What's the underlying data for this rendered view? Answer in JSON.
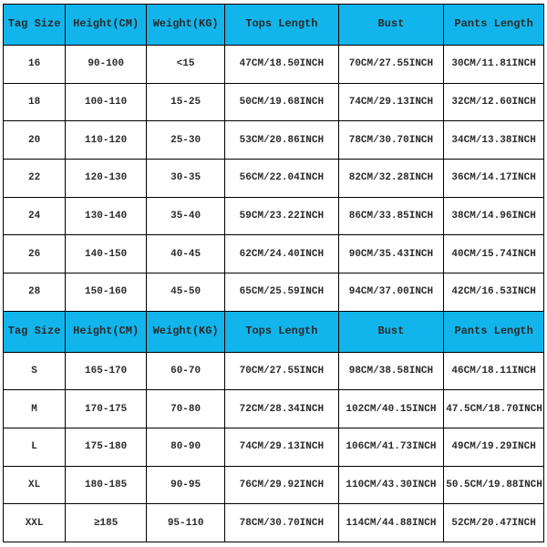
{
  "size_table": {
    "type": "table",
    "header_bg": "#12b5eb",
    "body_bg": "#ffffff",
    "border_color": "#000000",
    "text_color": "#2a2a2a",
    "font_family": "Courier New",
    "columns": [
      "Tag Size",
      "Height(CM)",
      "Weight(KG)",
      "Tops Length",
      "Bust",
      "Pants Length"
    ],
    "col_widths_pct": [
      11.5,
      15.0,
      14.5,
      21.0,
      19.5,
      18.5
    ],
    "sections": [
      {
        "header": [
          "Tag Size",
          "Height(CM)",
          "Weight(KG)",
          "Tops Length",
          "Bust",
          "Pants Length"
        ],
        "rows": [
          [
            "16",
            "90-100",
            "<15",
            "47CM/18.50INCH",
            "70CM/27.55INCH",
            "30CM/11.81INCH"
          ],
          [
            "18",
            "100-110",
            "15-25",
            "50CM/19.68INCH",
            "74CM/29.13INCH",
            "32CM/12.60INCH"
          ],
          [
            "20",
            "110-120",
            "25-30",
            "53CM/20.86INCH",
            "78CM/30.70INCH",
            "34CM/13.38INCH"
          ],
          [
            "22",
            "120-130",
            "30-35",
            "56CM/22.04INCH",
            "82CM/32.28INCH",
            "36CM/14.17INCH"
          ],
          [
            "24",
            "130-140",
            "35-40",
            "59CM/23.22INCH",
            "86CM/33.85INCH",
            "38CM/14.96INCH"
          ],
          [
            "26",
            "140-150",
            "40-45",
            "62CM/24.40INCH",
            "90CM/35.43INCH",
            "40CM/15.74INCH"
          ],
          [
            "28",
            "150-160",
            "45-50",
            "65CM/25.59INCH",
            "94CM/37.00INCH",
            "42CM/16.53INCH"
          ]
        ]
      },
      {
        "header": [
          "Tag Size",
          "Height(CM)",
          "Weight(KG)",
          "Tops Length",
          "Bust",
          "Pants Length"
        ],
        "rows": [
          [
            "S",
            "165-170",
            "60-70",
            "70CM/27.55INCH",
            "98CM/38.58INCH",
            "46CM/18.11INCH"
          ],
          [
            "M",
            "170-175",
            "70-80",
            "72CM/28.34INCH",
            "102CM/40.15INCH",
            "47.5CM/18.70INCH"
          ],
          [
            "L",
            "175-180",
            "80-90",
            "74CM/29.13INCH",
            "106CM/41.73INCH",
            "49CM/19.29INCH"
          ],
          [
            "XL",
            "180-185",
            "90-95",
            "76CM/29.92INCH",
            "110CM/43.30INCH",
            "50.5CM/19.88INCH"
          ],
          [
            "XXL",
            "≥185",
            "95-110",
            "78CM/30.70INCH",
            "114CM/44.88INCH",
            "52CM/20.47INCH"
          ]
        ]
      }
    ]
  }
}
